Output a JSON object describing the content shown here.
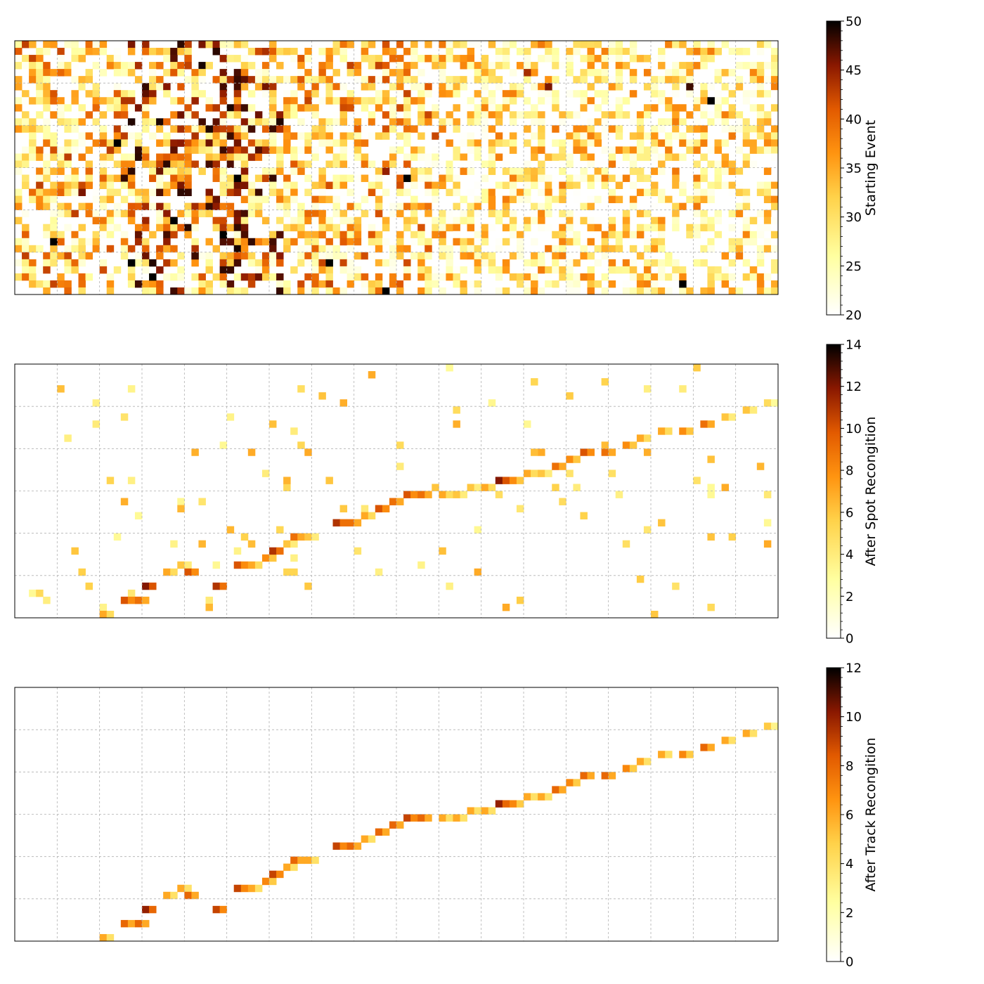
{
  "chart_data": [
    {
      "type": "heatmap",
      "colormap": "afmhot_r",
      "colorbar_label": "Starting Event",
      "colorbar_range": [
        20,
        50
      ],
      "colorbar_ticks": [
        20,
        25,
        30,
        35,
        40,
        45,
        50
      ],
      "colorbar_tick_labels": [
        "20",
        "25",
        "30",
        "35",
        "40",
        "45",
        "50"
      ],
      "grid": true,
      "axis_ticks_labeled": false,
      "content": "dense noisy hit pattern across the whole plane; highest counts concentrated in the left third and lower-left region",
      "hot_cells": [
        {
          "col": 19,
          "row": 33,
          "value": 50
        },
        {
          "col": 25,
          "row": 30,
          "value": 48
        },
        {
          "col": 29,
          "row": 27,
          "value": 50
        },
        {
          "col": 30,
          "row": 28,
          "value": 47
        },
        {
          "col": 31,
          "row": 19,
          "value": 50
        },
        {
          "col": 32,
          "row": 20,
          "value": 46
        },
        {
          "col": 20,
          "row": 23,
          "value": 45
        },
        {
          "col": 22,
          "row": 25,
          "value": 50
        },
        {
          "col": 27,
          "row": 12,
          "value": 49
        },
        {
          "col": 35,
          "row": 15,
          "value": 44
        },
        {
          "col": 14,
          "row": 14,
          "value": 50
        },
        {
          "col": 13,
          "row": 15,
          "value": 43
        },
        {
          "col": 5,
          "row": 28,
          "value": 50
        },
        {
          "col": 9,
          "row": 21,
          "value": 46
        },
        {
          "col": 16,
          "row": 31,
          "value": 50
        },
        {
          "col": 17,
          "row": 34,
          "value": 48
        },
        {
          "col": 52,
          "row": 35,
          "value": 50
        },
        {
          "col": 52,
          "row": 18,
          "value": 45
        },
        {
          "col": 55,
          "row": 19,
          "value": 50
        },
        {
          "col": 94,
          "row": 34,
          "value": 50
        },
        {
          "col": 95,
          "row": 6,
          "value": 48
        },
        {
          "col": 98,
          "row": 8,
          "value": 50
        },
        {
          "col": 75,
          "row": 6,
          "value": 46
        },
        {
          "col": 72,
          "row": 4,
          "value": 44
        },
        {
          "col": 44,
          "row": 31,
          "value": 50
        },
        {
          "col": 12,
          "row": 32,
          "value": 42
        }
      ]
    },
    {
      "type": "heatmap",
      "colormap": "afmhot_r",
      "colorbar_label": "After Spot Recongition",
      "colorbar_range": [
        0,
        14
      ],
      "colorbar_ticks": [
        0,
        2,
        4,
        6,
        8,
        10,
        12,
        14
      ],
      "colorbar_tick_labels": [
        "0",
        "2",
        "4",
        "6",
        "8",
        "10",
        "12",
        "14"
      ],
      "grid": true,
      "axis_ticks_labeled": false,
      "content": "diagonal track from lower-left to upper-right plus scattered isolated noise hits",
      "track_cells": [
        {
          "col": 12,
          "row": 35,
          "value": 7
        },
        {
          "col": 15,
          "row": 33,
          "value": 10
        },
        {
          "col": 17,
          "row": 33,
          "value": 9
        },
        {
          "col": 18,
          "row": 31,
          "value": 12
        },
        {
          "col": 21,
          "row": 29,
          "value": 7
        },
        {
          "col": 23,
          "row": 28,
          "value": 6
        },
        {
          "col": 24,
          "row": 29,
          "value": 10
        },
        {
          "col": 28,
          "row": 31,
          "value": 11
        },
        {
          "col": 31,
          "row": 28,
          "value": 10
        },
        {
          "col": 33,
          "row": 28,
          "value": 7
        },
        {
          "col": 35,
          "row": 27,
          "value": 8
        },
        {
          "col": 36,
          "row": 26,
          "value": 11
        },
        {
          "col": 38,
          "row": 25,
          "value": 6
        },
        {
          "col": 39,
          "row": 24,
          "value": 9
        },
        {
          "col": 41,
          "row": 24,
          "value": 6
        },
        {
          "col": 45,
          "row": 22,
          "value": 11
        },
        {
          "col": 47,
          "row": 22,
          "value": 9
        },
        {
          "col": 49,
          "row": 21,
          "value": 7
        },
        {
          "col": 51,
          "row": 20,
          "value": 10
        },
        {
          "col": 53,
          "row": 19,
          "value": 9
        },
        {
          "col": 55,
          "row": 18,
          "value": 10
        },
        {
          "col": 57,
          "row": 18,
          "value": 9
        },
        {
          "col": 60,
          "row": 18,
          "value": 7
        },
        {
          "col": 62,
          "row": 18,
          "value": 6
        },
        {
          "col": 64,
          "row": 17,
          "value": 6
        },
        {
          "col": 66,
          "row": 17,
          "value": 7
        },
        {
          "col": 68,
          "row": 16,
          "value": 12
        },
        {
          "col": 70,
          "row": 16,
          "value": 8
        },
        {
          "col": 72,
          "row": 15,
          "value": 7
        },
        {
          "col": 74,
          "row": 15,
          "value": 6
        },
        {
          "col": 76,
          "row": 14,
          "value": 9
        },
        {
          "col": 78,
          "row": 13,
          "value": 8
        },
        {
          "col": 80,
          "row": 12,
          "value": 10
        },
        {
          "col": 83,
          "row": 12,
          "value": 9
        },
        {
          "col": 86,
          "row": 11,
          "value": 8
        },
        {
          "col": 88,
          "row": 10,
          "value": 7
        },
        {
          "col": 91,
          "row": 9,
          "value": 7
        },
        {
          "col": 94,
          "row": 9,
          "value": 8
        },
        {
          "col": 97,
          "row": 8,
          "value": 9
        },
        {
          "col": 100,
          "row": 7,
          "value": 6
        },
        {
          "col": 103,
          "row": 6,
          "value": 6
        },
        {
          "col": 106,
          "row": 5,
          "value": 5
        }
      ]
    },
    {
      "type": "heatmap",
      "colormap": "afmhot_r",
      "colorbar_label": "After Track Recongition",
      "colorbar_range": [
        0,
        12
      ],
      "colorbar_ticks": [
        0,
        2,
        4,
        6,
        8,
        10,
        12
      ],
      "colorbar_tick_labels": [
        "0",
        "2",
        "4",
        "6",
        "8",
        "10",
        "12"
      ],
      "grid": true,
      "axis_ticks_labeled": false,
      "content": "only the diagonal track remains after track recognition; noise removed",
      "track_cells": [
        {
          "col": 12,
          "row": 35,
          "value": 6
        },
        {
          "col": 15,
          "row": 33,
          "value": 8
        },
        {
          "col": 17,
          "row": 33,
          "value": 8
        },
        {
          "col": 18,
          "row": 31,
          "value": 10
        },
        {
          "col": 21,
          "row": 29,
          "value": 6
        },
        {
          "col": 23,
          "row": 28,
          "value": 6
        },
        {
          "col": 24,
          "row": 29,
          "value": 8
        },
        {
          "col": 28,
          "row": 31,
          "value": 9
        },
        {
          "col": 31,
          "row": 28,
          "value": 9
        },
        {
          "col": 33,
          "row": 28,
          "value": 6
        },
        {
          "col": 35,
          "row": 27,
          "value": 7
        },
        {
          "col": 36,
          "row": 26,
          "value": 9
        },
        {
          "col": 38,
          "row": 25,
          "value": 6
        },
        {
          "col": 39,
          "row": 24,
          "value": 8
        },
        {
          "col": 41,
          "row": 24,
          "value": 6
        },
        {
          "col": 45,
          "row": 22,
          "value": 9
        },
        {
          "col": 47,
          "row": 22,
          "value": 8
        },
        {
          "col": 49,
          "row": 21,
          "value": 6
        },
        {
          "col": 51,
          "row": 20,
          "value": 8
        },
        {
          "col": 53,
          "row": 19,
          "value": 8
        },
        {
          "col": 55,
          "row": 18,
          "value": 9
        },
        {
          "col": 57,
          "row": 18,
          "value": 8
        },
        {
          "col": 60,
          "row": 18,
          "value": 6
        },
        {
          "col": 62,
          "row": 18,
          "value": 6
        },
        {
          "col": 64,
          "row": 17,
          "value": 6
        },
        {
          "col": 66,
          "row": 17,
          "value": 6
        },
        {
          "col": 68,
          "row": 16,
          "value": 10
        },
        {
          "col": 70,
          "row": 16,
          "value": 7
        },
        {
          "col": 72,
          "row": 15,
          "value": 6
        },
        {
          "col": 74,
          "row": 15,
          "value": 6
        },
        {
          "col": 76,
          "row": 14,
          "value": 8
        },
        {
          "col": 78,
          "row": 13,
          "value": 7
        },
        {
          "col": 80,
          "row": 12,
          "value": 8
        },
        {
          "col": 83,
          "row": 12,
          "value": 8
        },
        {
          "col": 86,
          "row": 11,
          "value": 7
        },
        {
          "col": 88,
          "row": 10,
          "value": 6
        },
        {
          "col": 91,
          "row": 9,
          "value": 6
        },
        {
          "col": 94,
          "row": 9,
          "value": 7
        },
        {
          "col": 97,
          "row": 8,
          "value": 8
        },
        {
          "col": 100,
          "row": 7,
          "value": 6
        },
        {
          "col": 103,
          "row": 6,
          "value": 6
        },
        {
          "col": 106,
          "row": 5,
          "value": 5
        }
      ]
    }
  ]
}
